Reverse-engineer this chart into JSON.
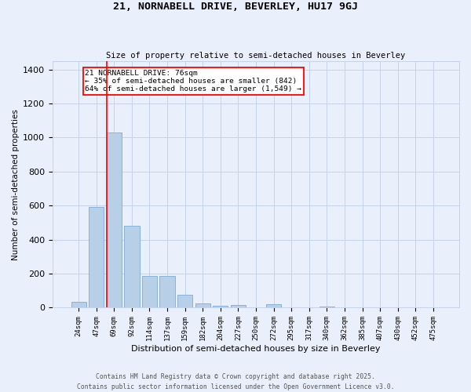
{
  "title_line1": "21, NORNABELL DRIVE, BEVERLEY, HU17 9GJ",
  "title_line2": "Size of property relative to semi-detached houses in Beverley",
  "xlabel": "Distribution of semi-detached houses by size in Beverley",
  "ylabel": "Number of semi-detached properties",
  "categories": [
    "24sqm",
    "47sqm",
    "69sqm",
    "92sqm",
    "114sqm",
    "137sqm",
    "159sqm",
    "182sqm",
    "204sqm",
    "227sqm",
    "250sqm",
    "272sqm",
    "295sqm",
    "317sqm",
    "340sqm",
    "362sqm",
    "385sqm",
    "407sqm",
    "430sqm",
    "452sqm",
    "475sqm"
  ],
  "values": [
    35,
    590,
    1030,
    480,
    185,
    185,
    75,
    25,
    10,
    15,
    0,
    20,
    0,
    0,
    5,
    0,
    0,
    0,
    0,
    0,
    0
  ],
  "bar_color": "#b8cfe8",
  "bar_edge_color": "#7aabda",
  "bg_color": "#eaf0fb",
  "grid_color": "#c5d3ea",
  "annotation_text": "21 NORNABELL DRIVE: 76sqm\n← 35% of semi-detached houses are smaller (842)\n64% of semi-detached houses are larger (1,549) →",
  "ylim": [
    0,
    1450
  ],
  "yticks": [
    0,
    200,
    400,
    600,
    800,
    1000,
    1200,
    1400
  ],
  "footer_line1": "Contains HM Land Registry data © Crown copyright and database right 2025.",
  "footer_line2": "Contains public sector information licensed under the Open Government Licence v3.0."
}
